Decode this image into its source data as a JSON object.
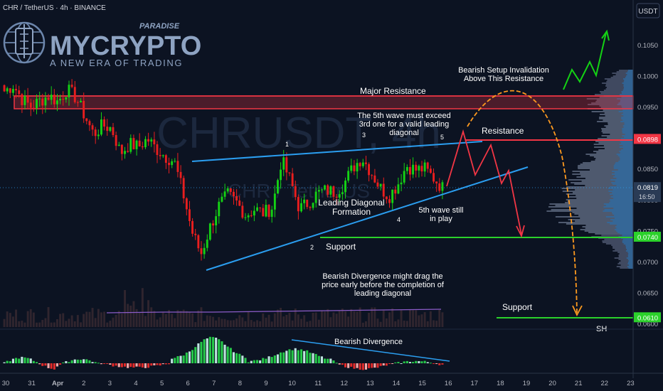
{
  "header": {
    "symbol": "CHR / TetherUS · 4h · BINANCE",
    "currency_button": "USDT"
  },
  "logo": {
    "brand": "MYCRYPTO",
    "tag": "PARADISE",
    "tagline": "A NEW ERA OF TRADING"
  },
  "watermark": {
    "ticker": "CHRUSDT, 4h",
    "pair": "CHR / TetherUS"
  },
  "colors": {
    "bg": "#0c1322",
    "up": "#26a69a",
    "upBright": "#14d214",
    "down": "#e91e1e",
    "resistance": "#f23645",
    "support": "#2bd12b",
    "trendline": "#2b9ef0",
    "macd_line": "#2b9ef0",
    "price_tag": "#2a3b55"
  },
  "chart_data": {
    "type": "candlestick",
    "y_scale": "price (USDT)",
    "y_ticks": [
      "0.1050",
      "0.1000",
      "0.0950",
      "0.0900",
      "0.0850",
      "0.0800",
      "0.0750",
      "0.0700",
      "0.0650",
      "0.0600"
    ],
    "x_ticks": [
      "30",
      "31",
      "Apr",
      "2",
      "3",
      "4",
      "5",
      "6",
      "7",
      "8",
      "9",
      "10",
      "11",
      "12",
      "13",
      "14",
      "15",
      "16",
      "17",
      "18",
      "19",
      "20",
      "21",
      "22",
      "23"
    ],
    "current_price": {
      "value": "0.0819",
      "countdown": "16:50"
    },
    "price_tags": [
      {
        "value": "0.0898",
        "level": 0.0898,
        "color": "#f23645"
      },
      {
        "value": "0.0740",
        "level": 0.074,
        "color": "#2bd12b"
      },
      {
        "value": "0.0610",
        "level": 0.061,
        "color": "#2bd12b"
      }
    ],
    "levels": [
      {
        "label": "Major Resistance",
        "from": 0.095,
        "to": 0.0972,
        "kind": "zone"
      },
      {
        "label": "Resistance",
        "value": 0.0898,
        "kind": "line"
      },
      {
        "label": "Support",
        "value": 0.074,
        "kind": "line"
      },
      {
        "label": "Support",
        "value": 0.061,
        "kind": "line"
      }
    ],
    "wave_labels": [
      "1",
      "2",
      "3",
      "4",
      "5"
    ],
    "annotations": [
      "Bearish Setup Invalidation\nAbove This Resistance",
      "The 5th wave must exceed\n3rd one for a valid leading\ndiagonal",
      "Leading Diagonal\nFormation",
      "5th wave still\nin play",
      "Bearish Divergence might drag the\nprice early before the completion of\nleading diagonal",
      "Bearish Divergence",
      "SH"
    ],
    "ohlc_sketch": [
      [
        0,
        0.099,
        0.1005,
        0.0968,
        0.0975
      ],
      [
        1,
        0.0975,
        0.099,
        0.0958,
        0.0985
      ],
      [
        2,
        0.0985,
        0.0998,
        0.096,
        0.0962
      ],
      [
        3,
        0.0962,
        0.0978,
        0.0945,
        0.095
      ],
      [
        4,
        0.095,
        0.0965,
        0.094,
        0.096
      ],
      [
        5,
        0.096,
        0.0975,
        0.095,
        0.0968
      ],
      [
        6,
        0.0968,
        0.098,
        0.0955,
        0.0958
      ],
      [
        7,
        0.0958,
        0.0985,
        0.095,
        0.0978
      ],
      [
        8,
        0.0978,
        0.099,
        0.096,
        0.0965
      ],
      [
        9,
        0.0965,
        0.0975,
        0.093,
        0.0935
      ],
      [
        10,
        0.0935,
        0.0945,
        0.09,
        0.0905
      ],
      [
        11,
        0.0905,
        0.0925,
        0.089,
        0.092
      ],
      [
        12,
        0.092,
        0.094,
        0.091,
        0.0915
      ],
      [
        13,
        0.0915,
        0.0925,
        0.087,
        0.0875
      ],
      [
        14,
        0.0875,
        0.0895,
        0.086,
        0.089
      ],
      [
        15,
        0.089,
        0.091,
        0.088,
        0.0885
      ],
      [
        16,
        0.0885,
        0.09,
        0.087,
        0.0898
      ],
      [
        17,
        0.0898,
        0.0905,
        0.088,
        0.0882
      ],
      [
        18,
        0.0882,
        0.0895,
        0.0865,
        0.087
      ],
      [
        19,
        0.087,
        0.088,
        0.086,
        0.0862
      ],
      [
        20,
        0.0862,
        0.0868,
        0.08,
        0.081
      ],
      [
        21,
        0.081,
        0.0815,
        0.074,
        0.0748
      ],
      [
        22,
        0.0748,
        0.076,
        0.07,
        0.0712
      ],
      [
        23,
        0.0712,
        0.076,
        0.0705,
        0.0755
      ],
      [
        24,
        0.0755,
        0.0795,
        0.0748,
        0.079
      ],
      [
        25,
        0.079,
        0.0815,
        0.0782,
        0.0808
      ],
      [
        26,
        0.0808,
        0.082,
        0.079,
        0.0795
      ],
      [
        27,
        0.0795,
        0.081,
        0.077,
        0.0775
      ],
      [
        28,
        0.0775,
        0.079,
        0.076,
        0.0785
      ],
      [
        29,
        0.0785,
        0.08,
        0.077,
        0.0778
      ],
      [
        30,
        0.0778,
        0.0792,
        0.0765,
        0.0788
      ],
      [
        31,
        0.0788,
        0.087,
        0.0785,
        0.0865
      ],
      [
        32,
        0.0865,
        0.0872,
        0.0825,
        0.083
      ],
      [
        33,
        0.083,
        0.084,
        0.078,
        0.0785
      ],
      [
        34,
        0.0785,
        0.08,
        0.077,
        0.0795
      ],
      [
        35,
        0.0795,
        0.0815,
        0.0788,
        0.081
      ],
      [
        36,
        0.081,
        0.0822,
        0.08,
        0.0815
      ],
      [
        37,
        0.0815,
        0.0825,
        0.0805,
        0.0812
      ],
      [
        38,
        0.0812,
        0.083,
        0.0808,
        0.0826
      ],
      [
        39,
        0.0826,
        0.0858,
        0.082,
        0.0852
      ],
      [
        40,
        0.0852,
        0.0872,
        0.0845,
        0.0868
      ],
      [
        41,
        0.0868,
        0.0875,
        0.084,
        0.0845
      ],
      [
        42,
        0.0845,
        0.0852,
        0.0815,
        0.082
      ],
      [
        43,
        0.082,
        0.083,
        0.08,
        0.0805
      ],
      [
        44,
        0.0805,
        0.0828,
        0.08,
        0.0825
      ],
      [
        45,
        0.0825,
        0.0858,
        0.0822,
        0.0855
      ],
      [
        46,
        0.0855,
        0.086,
        0.084,
        0.0848
      ],
      [
        47,
        0.0848,
        0.0856,
        0.0838,
        0.085
      ],
      [
        48,
        0.085,
        0.0855,
        0.083,
        0.0835
      ],
      [
        49,
        0.0835,
        0.084,
        0.0815,
        0.0819
      ]
    ]
  }
}
